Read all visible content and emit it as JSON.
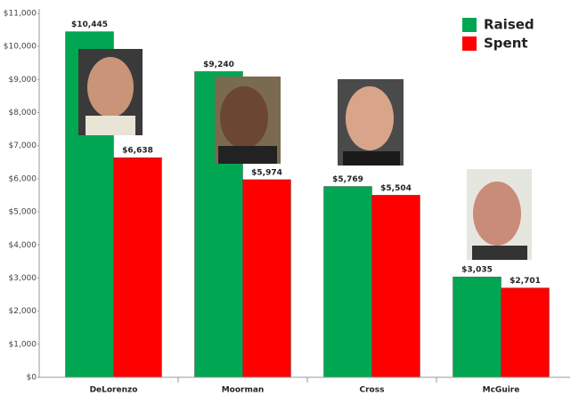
{
  "chart_data": {
    "type": "bar",
    "categories": [
      "DeLorenzo",
      "Moorman",
      "Cross",
      "McGuire"
    ],
    "series": [
      {
        "name": "Raised",
        "color": "#00a651",
        "values": [
          10445,
          9240,
          5769,
          3035
        ],
        "value_labels": [
          "$10,445",
          "$9,240",
          "$5,769",
          "$3,035"
        ]
      },
      {
        "name": "Spent",
        "color": "#ff0000",
        "values": [
          6638,
          5974,
          5504,
          2701
        ],
        "value_labels": [
          "$6,638",
          "$5,974",
          "$5,504",
          "$2,701"
        ]
      }
    ],
    "ylim": [
      0,
      11000
    ],
    "yticks": [
      {
        "value": 0,
        "label": "$0"
      },
      {
        "value": 1000,
        "label": "$1,000"
      },
      {
        "value": 2000,
        "label": "$2,000"
      },
      {
        "value": 3000,
        "label": "$3,000"
      },
      {
        "value": 4000,
        "label": "$4,000"
      },
      {
        "value": 5000,
        "label": "$5,000"
      },
      {
        "value": 6000,
        "label": "$6,000"
      },
      {
        "value": 7000,
        "label": "$7,000"
      },
      {
        "value": 8000,
        "label": "$8,000"
      },
      {
        "value": 9000,
        "label": "$9,000"
      },
      {
        "value": 10000,
        "label": "$10,000"
      },
      {
        "value": 11000,
        "label": "$11,000"
      }
    ],
    "legend": "top-right"
  }
}
